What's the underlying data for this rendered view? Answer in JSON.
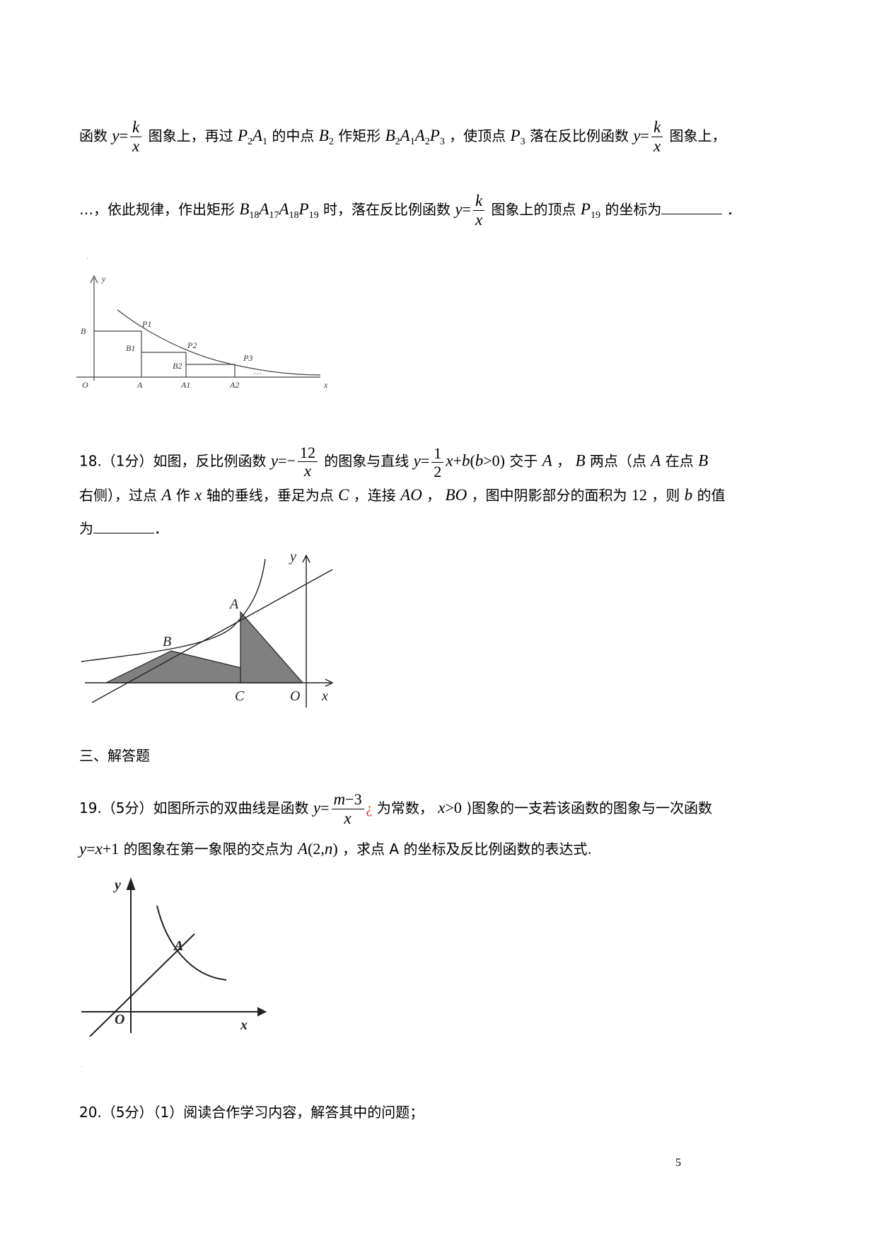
{
  "p17": {
    "l1": {
      "t1": "函数",
      "t2": "图象上，再过",
      "t3": "的中点",
      "t4": "作矩形",
      "t5": "，使顶点",
      "t6": "落在反比例函数",
      "t7": "图象上，"
    },
    "l2": {
      "t1": "…，依此规律，作出矩形",
      "t2": "时，落在反比例函数",
      "t3": "图象上的顶点",
      "t4": "的坐标为",
      "t5": "．"
    },
    "fig": {
      "y": "y",
      "o": "O",
      "x": "x",
      "b": "B",
      "a": "A",
      "a1": "A1",
      "a2": "A2",
      "b1": "B1",
      "b2": "B2",
      "p1": "P1",
      "p2": "P2",
      "p3": "P3",
      "dots": "…"
    }
  },
  "q18": {
    "l1": {
      "t1": "18.（1分）如图，反比例函数",
      "t2": "的图象与直线",
      "t3": "交于",
      "t4": "，",
      "t5": "两点（点",
      "t6": "在点"
    },
    "l2": {
      "t1": "右侧），过点",
      "t2": "作",
      "t3": "轴的垂线，垂足为点",
      "t4": "，连接",
      "t5": "，",
      "t6": "，图中阴影部分的面积为",
      "area": "12",
      "t7": "，则",
      "t8": "的值"
    },
    "l3": {
      "t1": "为",
      "t2": "．"
    },
    "fig": {
      "y": "y",
      "a": "A",
      "b": "B",
      "c": "C",
      "o": "O",
      "x": "x"
    }
  },
  "section3": "三、解答题",
  "q19": {
    "l1": {
      "t1": "19.（5分）如图所示的双曲线是函数",
      "glyph": "¿",
      "t2": "为常数，",
      "t3": ")图象的一支若该函数的图象与一次函数"
    },
    "l2": {
      "t1": "的图象在第一象限的交点为",
      "t2": "，求点 A 的坐标及反比例函数的表达式."
    },
    "fig": {
      "y": "y",
      "a": "A",
      "o": "O",
      "x": "x"
    }
  },
  "q20": {
    "t1": "20.（5分）（1）阅读合作学习内容，解答其中的问题；"
  },
  "page_number": "5"
}
